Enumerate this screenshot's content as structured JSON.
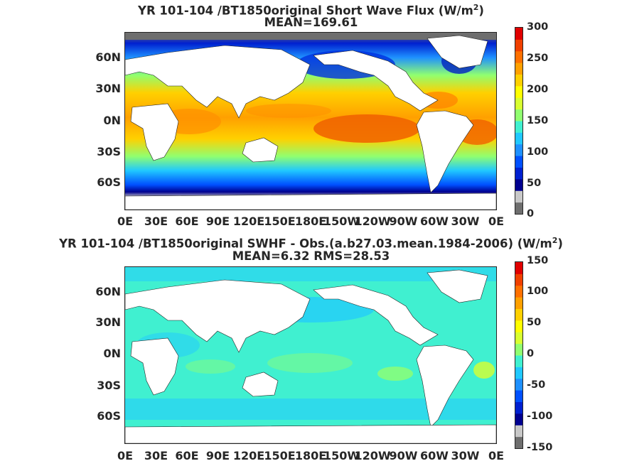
{
  "panel_top": {
    "title_line1": "YR 101-104 /BT1850original  Short Wave Flux (W/m",
    "title_sup": "2",
    "title_close": ")",
    "title_line2": "MEAN=169.61",
    "y_ticks": [
      "60N",
      "30N",
      "0N",
      "30S",
      "60S"
    ],
    "x_ticks": [
      "0E",
      "30E",
      "60E",
      "90E",
      "120E",
      "150E",
      "180E",
      "150W",
      "120W",
      "90W",
      "60W",
      "30W",
      "0E"
    ],
    "colorbar_ticks": [
      "300",
      "250",
      "200",
      "150",
      "100",
      "50",
      "0"
    ],
    "colorbar_colors": [
      "#6e6e6e",
      "#c8c8c8",
      "#00008f",
      "#0020d0",
      "#0050ff",
      "#1e90ff",
      "#20c8ff",
      "#40f0d0",
      "#90ff70",
      "#d8ff30",
      "#ffff00",
      "#ffd000",
      "#ffa000",
      "#ff7000",
      "#f04000",
      "#e00000"
    ]
  },
  "panel_bottom": {
    "title_line1": "YR 101-104 /BT1850original SWHF - Obs.(a.b27.03.mean.1984-2006) (W/m",
    "title_sup": "2",
    "title_close": ")",
    "title_line2": "MEAN=6.32 RMS=28.53",
    "y_ticks": [
      "60N",
      "30N",
      "0N",
      "30S",
      "60S"
    ],
    "x_ticks": [
      "0E",
      "30E",
      "60E",
      "90E",
      "120E",
      "150E",
      "180E",
      "150W",
      "120W",
      "90W",
      "60W",
      "30W",
      "0E"
    ],
    "colorbar_ticks": [
      "150",
      "100",
      "50",
      "0",
      "-50",
      "-100",
      "-150"
    ],
    "colorbar_colors": [
      "#6e6e6e",
      "#c8c8c8",
      "#00008f",
      "#0020d0",
      "#0050ff",
      "#1e90ff",
      "#20c8ff",
      "#40f0d0",
      "#90ff70",
      "#d8ff30",
      "#ffff00",
      "#ffd000",
      "#ffa000",
      "#ff7000",
      "#f04000",
      "#e00000"
    ]
  },
  "land_color": "#ffffff",
  "ice_colors": [
    "#6e6e6e",
    "#c8c8c8"
  ]
}
